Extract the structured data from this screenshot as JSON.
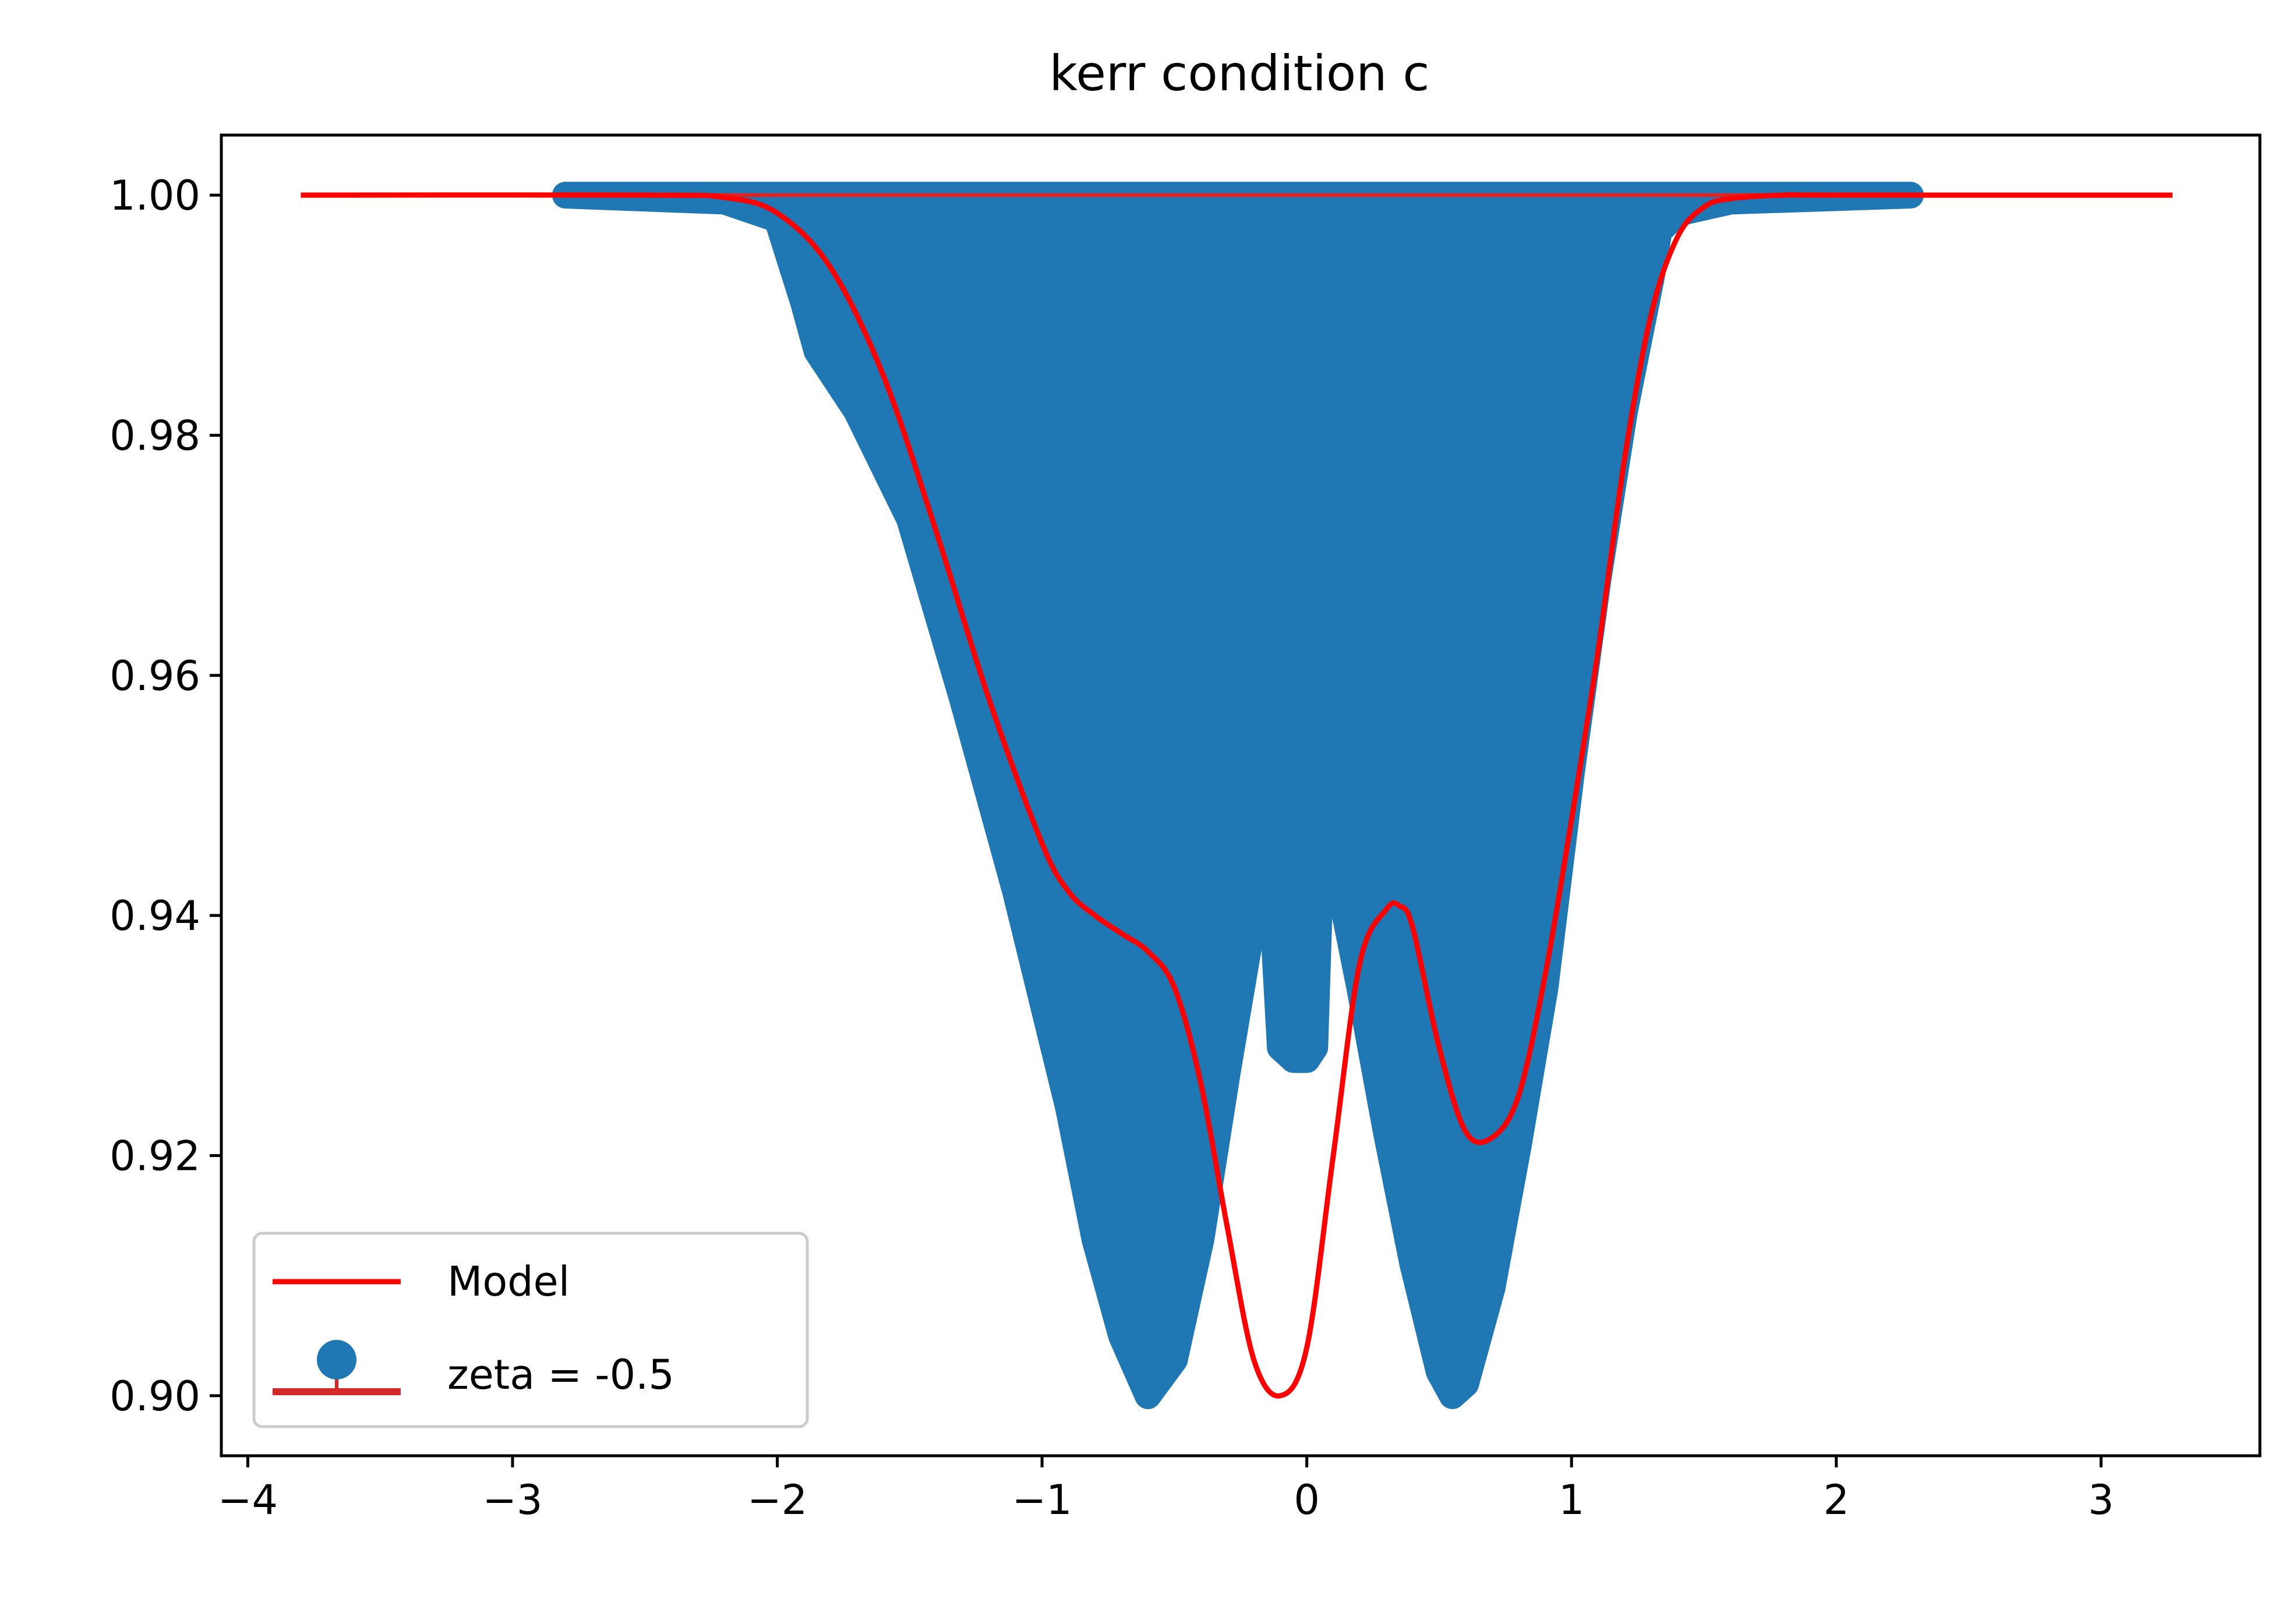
{
  "chart_data": {
    "type": "line",
    "title": "kerr condition c",
    "xlabel": "",
    "ylabel": "",
    "xlim": [
      -4.1,
      3.6
    ],
    "ylim": [
      0.895,
      1.005
    ],
    "x_ticks": [
      -4,
      -3,
      -2,
      -1,
      0,
      1,
      2,
      3
    ],
    "x_tick_labels": [
      "−4",
      "−3",
      "−2",
      "−1",
      "0",
      "1",
      "2",
      "3"
    ],
    "y_ticks": [
      0.9,
      0.92,
      0.94,
      0.96,
      0.98,
      1.0
    ],
    "y_tick_labels": [
      "0.90",
      "0.92",
      "0.94",
      "0.96",
      "0.98",
      "1.00"
    ],
    "grid": false,
    "legend_position": "lower left",
    "colors": {
      "model": "#ff0000",
      "data": "#1f77b4",
      "errorbar": "#d62728"
    },
    "series": [
      {
        "name": "Model",
        "kind": "line",
        "x": [
          -3.8,
          -2.5,
          -2.2,
          -2.0,
          -1.8,
          -1.6,
          -1.4,
          -1.2,
          -1.0,
          -0.9,
          -0.8,
          -0.7,
          -0.6,
          -0.5,
          -0.4,
          -0.3,
          -0.2,
          -0.1,
          0.0,
          0.1,
          0.2,
          0.3,
          0.35,
          0.4,
          0.5,
          0.6,
          0.7,
          0.8,
          0.9,
          1.0,
          1.1,
          1.2,
          1.3,
          1.4,
          1.5,
          1.6,
          1.8,
          2.0,
          3.27
        ],
        "y": [
          1.0,
          1.0,
          0.9998,
          0.9985,
          0.994,
          0.985,
          0.972,
          0.958,
          0.946,
          0.942,
          0.94,
          0.9385,
          0.937,
          0.934,
          0.926,
          0.914,
          0.903,
          0.9,
          0.904,
          0.92,
          0.936,
          0.9405,
          0.9408,
          0.939,
          0.929,
          0.922,
          0.9215,
          0.925,
          0.935,
          0.948,
          0.962,
          0.978,
          0.99,
          0.9965,
          0.999,
          0.9997,
          1.0,
          1.0,
          1.0
        ]
      },
      {
        "name": "zeta = -0.5",
        "kind": "markers",
        "marker": "circle",
        "upper_x": [
          -2.8,
          2.28
        ],
        "upper_y": [
          1.0,
          1.0
        ],
        "lower_x": [
          -2.8,
          -2.2,
          -2.0,
          -1.9,
          -1.85,
          -1.7,
          -1.5,
          -1.3,
          -1.1,
          -0.9,
          -0.8,
          -0.7,
          -0.6,
          -0.5,
          -0.4,
          -0.3,
          -0.2,
          -0.13,
          -0.1,
          -0.05,
          0.0,
          0.03,
          0.07,
          0.1,
          0.2,
          0.3,
          0.4,
          0.5,
          0.55,
          0.6,
          0.7,
          0.8,
          0.9,
          1.0,
          1.1,
          1.2,
          1.3,
          1.33,
          1.4,
          1.6,
          2.28
        ],
        "lower_y": [
          1.0,
          0.9995,
          0.998,
          0.991,
          0.987,
          0.982,
          0.973,
          0.958,
          0.942,
          0.924,
          0.913,
          0.905,
          0.9,
          0.903,
          0.913,
          0.927,
          0.94,
          0.941,
          0.929,
          0.928,
          0.928,
          0.929,
          0.957,
          0.945,
          0.934,
          0.922,
          0.911,
          0.902,
          0.9,
          0.901,
          0.909,
          0.921,
          0.934,
          0.952,
          0.968,
          0.982,
          0.993,
          0.997,
          0.9985,
          0.9995,
          1.0
        ]
      }
    ]
  }
}
